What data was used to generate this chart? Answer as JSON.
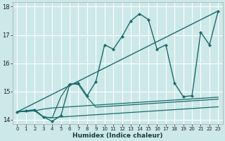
{
  "xlabel": "Humidex (Indice chaleur)",
  "xlim": [
    -0.5,
    23.5
  ],
  "ylim": [
    13.85,
    18.15
  ],
  "yticks": [
    14,
    15,
    16,
    17,
    18
  ],
  "xticks": [
    0,
    1,
    2,
    3,
    4,
    5,
    6,
    7,
    8,
    9,
    10,
    11,
    12,
    13,
    14,
    15,
    16,
    17,
    18,
    19,
    20,
    21,
    22,
    23
  ],
  "bg_color": "#cce8e8",
  "line_color": "#1a6b6b",
  "grid_color": "#ffffff",
  "figwidth": 3.2,
  "figheight": 2.0,
  "dpi": 100,
  "main_line": {
    "x": [
      0,
      1,
      2,
      3,
      4,
      5,
      6,
      7,
      8,
      9,
      10,
      11,
      12,
      13,
      14,
      15,
      16,
      17,
      18,
      19,
      20,
      21,
      22,
      23
    ],
    "y": [
      14.28,
      14.32,
      14.36,
      14.1,
      13.95,
      14.15,
      15.25,
      15.3,
      14.85,
      15.35,
      16.65,
      16.5,
      16.95,
      17.5,
      17.75,
      17.55,
      16.5,
      16.65,
      15.3,
      14.82,
      14.85,
      17.1,
      16.65,
      17.85
    ]
  },
  "trend_line": {
    "x": [
      0,
      23
    ],
    "y": [
      14.28,
      17.85
    ]
  },
  "flat_line1": {
    "x": [
      0,
      1,
      2,
      3,
      4,
      5,
      6,
      7,
      8,
      9,
      10,
      11,
      12,
      13,
      14,
      15,
      16,
      17,
      18,
      19,
      20,
      21,
      22,
      23
    ],
    "y": [
      14.28,
      14.3,
      14.32,
      14.1,
      14.07,
      14.1,
      14.12,
      14.14,
      14.16,
      14.18,
      14.2,
      14.22,
      14.24,
      14.26,
      14.28,
      14.3,
      14.32,
      14.34,
      14.36,
      14.38,
      14.4,
      14.42,
      14.44,
      14.46
    ]
  },
  "flat_line2": {
    "x": [
      0,
      1,
      2,
      3,
      4,
      5,
      6,
      7,
      8,
      9,
      10,
      11,
      12,
      13,
      14,
      15,
      16,
      17,
      18,
      19,
      20,
      21,
      22,
      23
    ],
    "y": [
      14.28,
      14.3,
      14.32,
      14.1,
      14.07,
      14.82,
      15.28,
      15.25,
      14.8,
      14.45,
      14.47,
      14.49,
      14.51,
      14.53,
      14.55,
      14.57,
      14.59,
      14.61,
      14.63,
      14.65,
      14.67,
      14.69,
      14.71,
      14.73
    ]
  },
  "flat_line3": {
    "x": [
      0,
      1,
      2,
      3,
      4,
      5,
      6,
      7,
      8,
      9,
      10,
      11,
      12,
      13,
      14,
      15,
      16,
      17,
      18,
      19,
      20,
      21,
      22,
      23
    ],
    "y": [
      14.28,
      14.3,
      14.32,
      14.38,
      14.42,
      14.44,
      14.46,
      14.48,
      14.5,
      14.52,
      14.54,
      14.56,
      14.58,
      14.6,
      14.62,
      14.64,
      14.66,
      14.68,
      14.7,
      14.72,
      14.74,
      14.76,
      14.78,
      14.8
    ]
  }
}
